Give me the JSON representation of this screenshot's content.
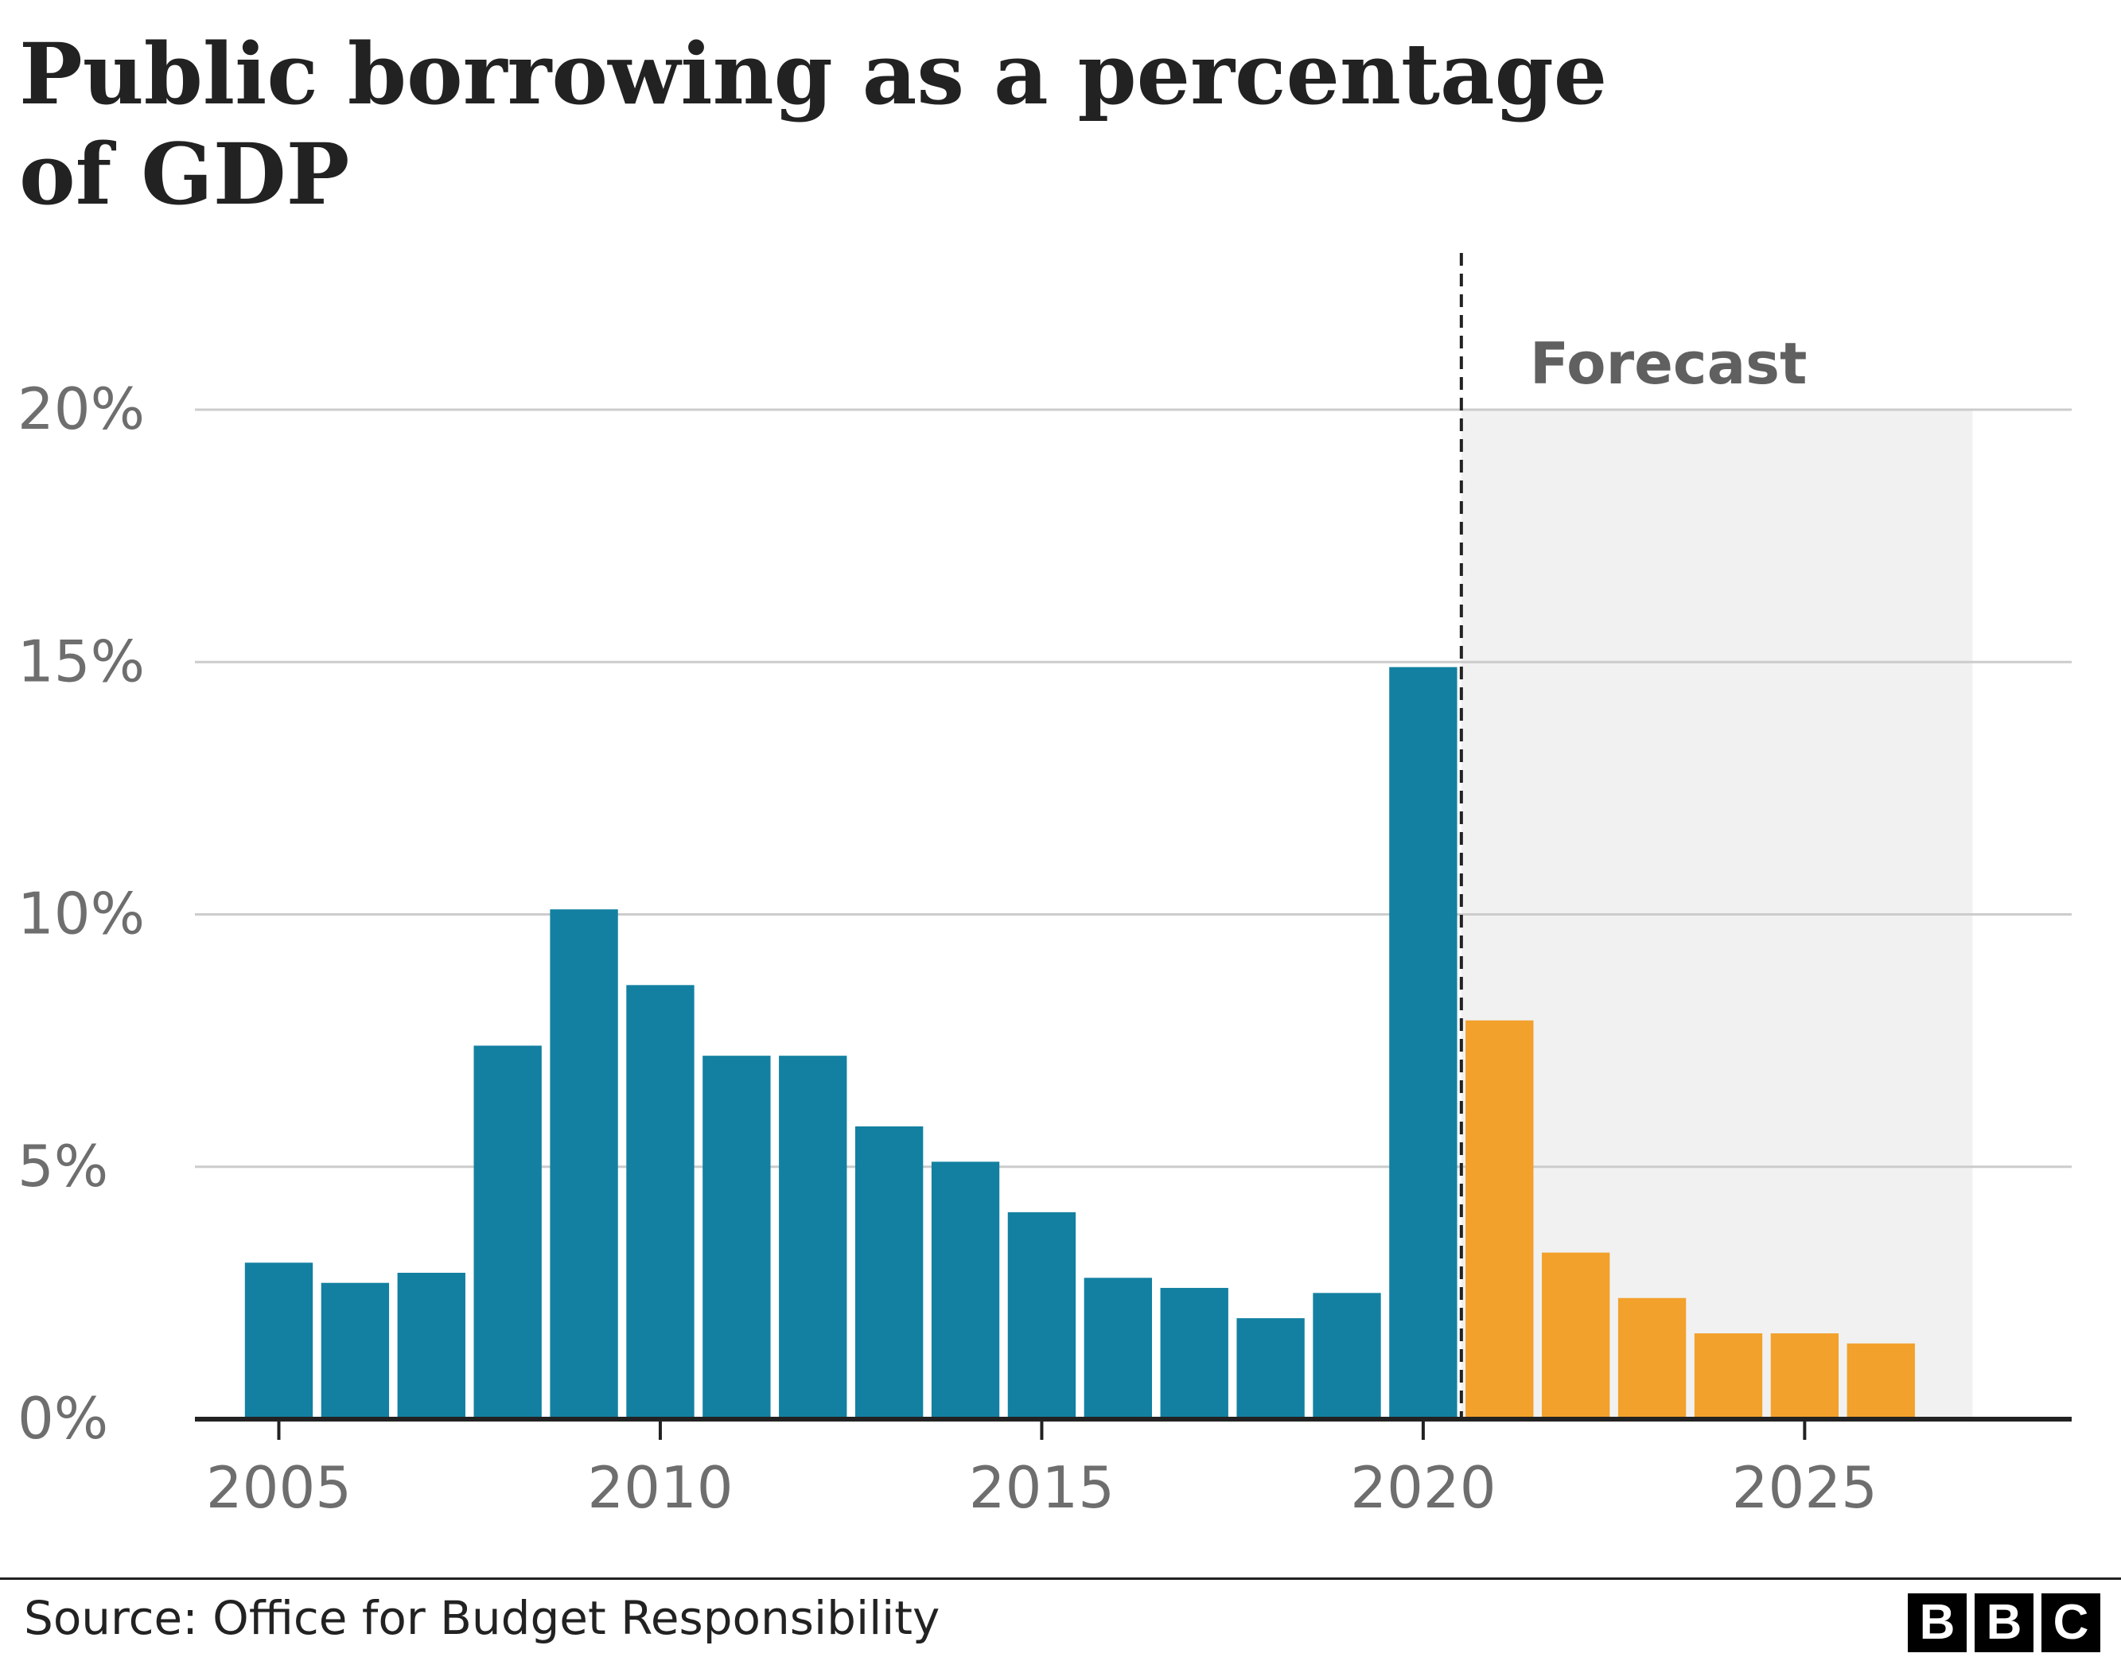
{
  "title": "Public borrowing as a percentage of GDP",
  "source": "Source: Office for Budget Responsibility",
  "logo": {
    "letters": [
      "B",
      "B",
      "C"
    ]
  },
  "colors": {
    "actual": "#1380a1",
    "forecast": "#f2a12c",
    "forecast_shading": "#f1f1f1",
    "gridline": "#cccccc",
    "axis": "#222222",
    "text": "#222222",
    "tick_text": "#6e6e6e"
  },
  "chart_data": {
    "type": "bar",
    "title": "Public borrowing as a percentage of GDP",
    "xlabel": "",
    "ylabel": "",
    "ylim": [
      0,
      20
    ],
    "yticks": [
      0,
      5,
      10,
      15,
      20
    ],
    "yticks_labels": [
      "0%",
      "5%",
      "10%",
      "15%",
      "20%"
    ],
    "xticks": [
      2005,
      2010,
      2015,
      2020,
      2025
    ],
    "xticks_labels": [
      "2005",
      "2010",
      "2015",
      "2020",
      "2025"
    ],
    "xlim": [
      2003.9,
      2028.5
    ],
    "grid": true,
    "forecast_annotation": "Forecast",
    "forecast_divider_x": 2020.5,
    "forecast_shading_end_x": 2027.2,
    "series": [
      {
        "kind": "actual",
        "x": [
          2005,
          2006,
          2007,
          2008,
          2009,
          2010,
          2011,
          2012,
          2013,
          2014,
          2015,
          2016,
          2017,
          2018,
          2019,
          2020
        ],
        "values": [
          3.1,
          2.7,
          2.9,
          7.4,
          10.1,
          8.6,
          7.2,
          7.2,
          5.8,
          5.1,
          4.1,
          2.8,
          2.6,
          2.0,
          2.5,
          14.9
        ]
      },
      {
        "kind": "forecast",
        "x": [
          2021,
          2022,
          2023,
          2024,
          2025,
          2026
        ],
        "values": [
          7.9,
          3.3,
          2.4,
          1.7,
          1.7,
          1.5
        ]
      }
    ]
  }
}
